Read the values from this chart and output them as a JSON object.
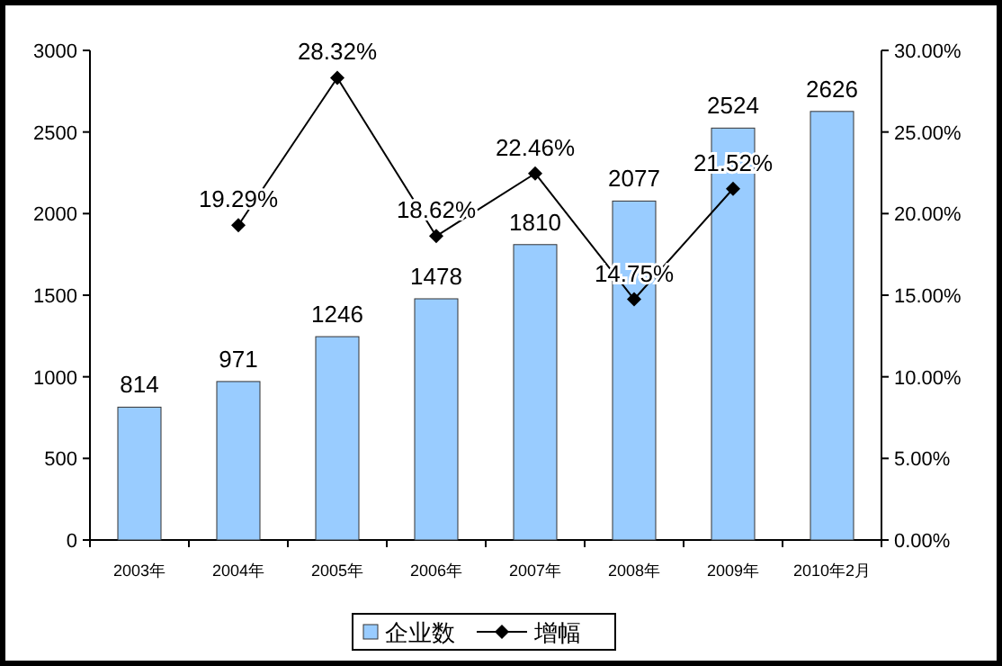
{
  "chart_data": {
    "type": "bar",
    "categories": [
      "2003年",
      "2004年",
      "2005年",
      "2006年",
      "2007年",
      "2008年",
      "2009年",
      "2010年2月"
    ],
    "series": [
      {
        "name": "企业数",
        "color": "#99ccff",
        "values": [
          814,
          971,
          1246,
          1478,
          1810,
          2077,
          2524,
          2626
        ],
        "value_labels": [
          "814",
          "971",
          "1246",
          "1478",
          "1810",
          "2077",
          "2524",
          "2626"
        ]
      },
      {
        "name": "增幅",
        "type": "line",
        "axis": "y2",
        "color": "#000000",
        "marker": "diamond",
        "line_style": "solid",
        "values": [
          null,
          19.29,
          28.32,
          18.62,
          22.46,
          14.75,
          21.52,
          null
        ],
        "value_labels": [
          null,
          "19.29%",
          "28.32%",
          "18.62%",
          "22.46%",
          "14.75%",
          "21.52%",
          null
        ]
      }
    ],
    "ylim": [
      0,
      3000
    ],
    "yticks": [
      0,
      500,
      1000,
      1500,
      2000,
      2500,
      3000
    ],
    "y2lim": [
      0,
      30
    ],
    "y2ticks": [
      {
        "value": 0,
        "label": "0.00%"
      },
      {
        "value": 5,
        "label": "5.00%"
      },
      {
        "value": 10,
        "label": "10.00%"
      },
      {
        "value": 15,
        "label": "15.00%"
      },
      {
        "value": 20,
        "label": "20.00%"
      },
      {
        "value": 25,
        "label": "25.00%"
      },
      {
        "value": 30,
        "label": "30.00%"
      }
    ],
    "legend": "bottom",
    "grid": false
  }
}
